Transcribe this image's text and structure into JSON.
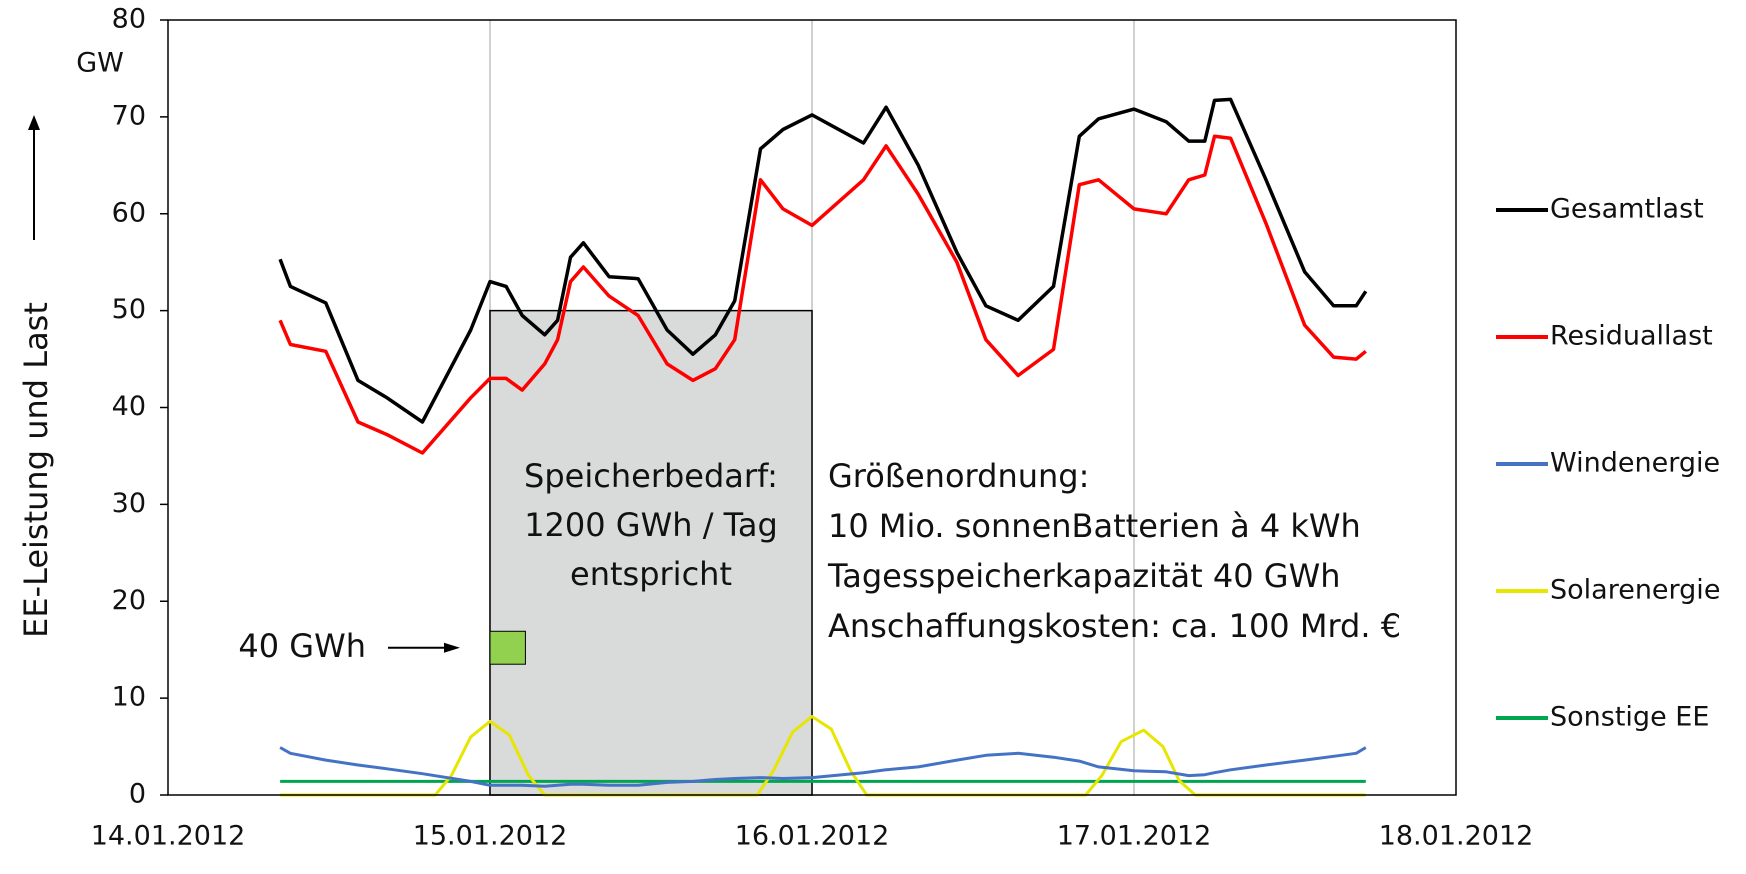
{
  "chart_data": {
    "type": "line",
    "y_label": "EE-Leistung und Last",
    "y_unit": "GW",
    "xlim": [
      0,
      4
    ],
    "xticks": [
      {
        "value": 0,
        "label": "14.01.2012"
      },
      {
        "value": 1,
        "label": "15.01.2012"
      },
      {
        "value": 2,
        "label": "16.01.2012"
      },
      {
        "value": 3,
        "label": "17.01.2012"
      },
      {
        "value": 4,
        "label": "18.01.2012"
      }
    ],
    "ylim": [
      0,
      80
    ],
    "yticks": [
      0,
      10,
      20,
      30,
      40,
      50,
      60,
      70,
      80
    ],
    "grid": true,
    "legend": "right",
    "series": [
      {
        "name": "Gesamtlast",
        "color": "#000000",
        "x": [
          0.348,
          0.38,
          0.49,
          0.59,
          0.68,
          0.79,
          0.94,
          1.0,
          1.05,
          1.1,
          1.17,
          1.21,
          1.25,
          1.29,
          1.37,
          1.46,
          1.55,
          1.63,
          1.7,
          1.76,
          1.84,
          1.91,
          2.0,
          2.16,
          2.23,
          2.33,
          2.45,
          2.54,
          2.64,
          2.75,
          2.83,
          2.89,
          3.0,
          3.1,
          3.17,
          3.22,
          3.25,
          3.3,
          3.41,
          3.53,
          3.62,
          3.69,
          3.72
        ],
        "values": [
          55.3,
          52.5,
          50.8,
          42.8,
          41,
          38.5,
          48,
          53,
          52.5,
          49.5,
          47.5,
          49,
          55.5,
          57,
          53.5,
          53.3,
          48,
          45.5,
          47.5,
          51,
          66.7,
          68.7,
          70.2,
          67.3,
          71,
          65,
          56,
          50.5,
          49,
          52.5,
          68,
          69.8,
          70.8,
          69.5,
          67.5,
          67.5,
          71.7,
          71.8,
          63.5,
          54,
          50.5,
          50.5,
          52
        ]
      },
      {
        "name": "Residuallast",
        "color": "#ff0000",
        "x": [
          0.348,
          0.38,
          0.49,
          0.59,
          0.68,
          0.79,
          0.94,
          1.0,
          1.05,
          1.1,
          1.17,
          1.21,
          1.25,
          1.29,
          1.37,
          1.46,
          1.55,
          1.63,
          1.7,
          1.76,
          1.84,
          1.91,
          2.0,
          2.16,
          2.23,
          2.33,
          2.45,
          2.54,
          2.64,
          2.75,
          2.83,
          2.89,
          3.0,
          3.1,
          3.17,
          3.22,
          3.25,
          3.3,
          3.41,
          3.53,
          3.62,
          3.69,
          3.72
        ],
        "values": [
          49,
          46.5,
          45.8,
          38.5,
          37.2,
          35.3,
          41,
          43,
          43,
          41.8,
          44.5,
          47,
          53,
          54.5,
          51.5,
          49.5,
          44.5,
          42.8,
          44,
          47,
          63.5,
          60.5,
          58.8,
          63.5,
          67,
          62,
          55,
          47,
          43.3,
          46,
          63,
          63.5,
          60.5,
          60,
          63.5,
          64,
          68,
          67.8,
          59,
          48.5,
          45.2,
          45,
          45.8
        ]
      },
      {
        "name": "Windenergie",
        "color": "#4472c4",
        "x": [
          0.348,
          0.38,
          0.49,
          0.59,
          0.68,
          0.79,
          0.94,
          1.0,
          1.05,
          1.1,
          1.17,
          1.21,
          1.25,
          1.29,
          1.37,
          1.46,
          1.55,
          1.63,
          1.7,
          1.76,
          1.84,
          1.91,
          2.0,
          2.16,
          2.23,
          2.33,
          2.45,
          2.54,
          2.64,
          2.75,
          2.83,
          2.89,
          3.0,
          3.1,
          3.17,
          3.22,
          3.25,
          3.3,
          3.41,
          3.53,
          3.62,
          3.69,
          3.72
        ],
        "values": [
          4.9,
          4.3,
          3.6,
          3.1,
          2.7,
          2.2,
          1.4,
          1.0,
          1.0,
          1.0,
          0.9,
          1.0,
          1.1,
          1.1,
          1.0,
          1.0,
          1.3,
          1.4,
          1.6,
          1.7,
          1.8,
          1.7,
          1.8,
          2.3,
          2.6,
          2.9,
          3.6,
          4.1,
          4.3,
          3.9,
          3.5,
          2.9,
          2.5,
          2.4,
          2.0,
          2.1,
          2.3,
          2.6,
          3.1,
          3.6,
          4.0,
          4.3,
          4.9
        ]
      },
      {
        "name": "Solarenergie",
        "color": "#e6e600",
        "x": [
          0.348,
          0.83,
          0.88,
          0.94,
          1.0,
          1.06,
          1.12,
          1.17,
          1.83,
          1.88,
          1.94,
          2.0,
          2.06,
          2.12,
          2.17,
          2.85,
          2.9,
          2.96,
          3.03,
          3.09,
          3.14,
          3.19,
          3.72
        ],
        "values": [
          0,
          0,
          2,
          6,
          7.6,
          6.2,
          2,
          0,
          0,
          2.5,
          6.5,
          8.1,
          6.8,
          2.5,
          0,
          0,
          2,
          5.5,
          6.7,
          5,
          1.5,
          0,
          0
        ]
      },
      {
        "name": "Sonstige EE",
        "color": "#00a550",
        "x": [
          0.348,
          3.72
        ],
        "values": [
          1.4,
          1.4
        ]
      }
    ],
    "storage_box": {
      "x": [
        1,
        2
      ],
      "y": [
        0,
        50
      ],
      "lines": [
        "Speicherbedarf:",
        "1200 GWh / Tag",
        "entspricht"
      ]
    },
    "battery_box": {
      "x": [
        1,
        1.11
      ],
      "y": [
        13.5,
        16.9
      ],
      "label": "40 GWh"
    },
    "note_lines": [
      "Größenordnung:",
      "10 Mio. sonnenBatterien à 4 kWh",
      "Tagesspeicherkapazität 40 GWh",
      "Anschaffungskosten: ca. 100 Mrd. €"
    ]
  }
}
